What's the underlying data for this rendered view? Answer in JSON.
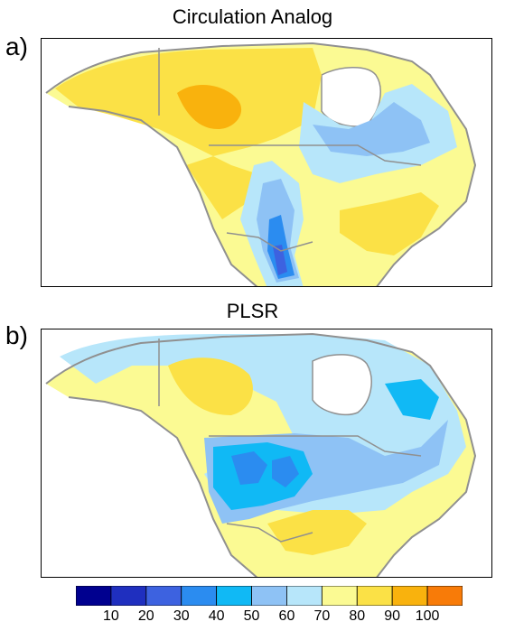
{
  "panels": [
    {
      "letter": "a)",
      "title": "Circulation Analog"
    },
    {
      "letter": "b)",
      "title": "PLSR"
    }
  ],
  "colorbar": {
    "ticks": [
      "10",
      "20",
      "30",
      "40",
      "50",
      "60",
      "70",
      "80",
      "90",
      "100"
    ],
    "colors": [
      "#00008f",
      "#1f2fbf",
      "#3d62e0",
      "#2b8cf0",
      "#10b9f5",
      "#8ec2f5",
      "#b7e6fa",
      "#fbfa93",
      "#fbe146",
      "#f9b20d",
      "#f87b08"
    ]
  },
  "colors": {
    "land_outline": "#909090",
    "background": "#ffffff"
  }
}
